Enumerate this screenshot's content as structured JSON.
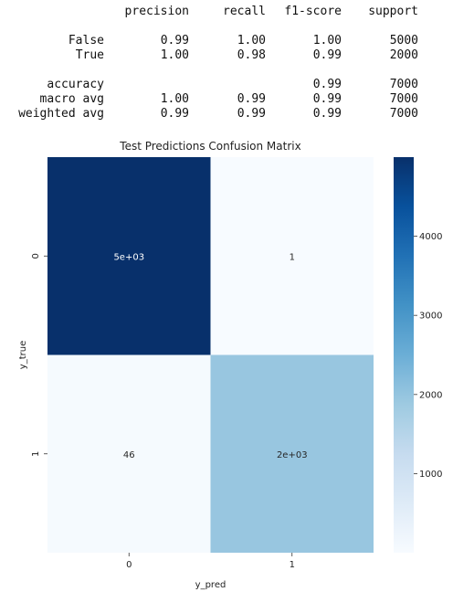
{
  "report": {
    "headers": [
      "precision",
      "recall",
      "f1-score",
      "support"
    ],
    "rows": [
      {
        "label": "False",
        "precision": "0.99",
        "recall": "1.00",
        "f1": "1.00",
        "support": "5000"
      },
      {
        "label": "True",
        "precision": "1.00",
        "recall": "0.98",
        "f1": "0.99",
        "support": "2000"
      },
      {
        "label": "accuracy",
        "precision": "",
        "recall": "",
        "f1": "0.99",
        "support": "7000"
      },
      {
        "label": "macro avg",
        "precision": "1.00",
        "recall": "0.99",
        "f1": "0.99",
        "support": "7000"
      },
      {
        "label": "weighted avg",
        "precision": "0.99",
        "recall": "0.99",
        "f1": "0.99",
        "support": "7000"
      }
    ]
  },
  "chart_data": {
    "type": "heatmap",
    "title": "Test Predictions Confusion Matrix",
    "xlabel": "y_pred",
    "ylabel": "y_true",
    "x_categories": [
      "0",
      "1"
    ],
    "y_categories": [
      "0",
      "1"
    ],
    "values": [
      [
        4999,
        1
      ],
      [
        46,
        1954
      ]
    ],
    "cell_labels": [
      [
        "5e+03",
        "1"
      ],
      [
        "46",
        "2e+03"
      ]
    ],
    "colormap": "Blues",
    "colorbar": {
      "range": [
        1,
        4999
      ],
      "ticks": [
        1000,
        2000,
        3000,
        4000
      ],
      "tick_labels": [
        "1000",
        "2000",
        "3000",
        "4000"
      ]
    },
    "grid": false,
    "legend": "none"
  }
}
